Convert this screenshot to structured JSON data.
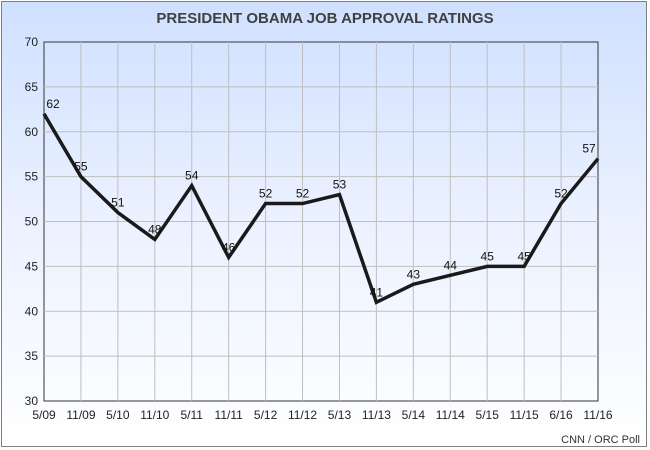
{
  "chart_data": {
    "type": "line",
    "title": "PRESIDENT OBAMA JOB APPROVAL RATINGS",
    "source": "CNN / ORC Poll",
    "categories": [
      "5/09",
      "11/09",
      "5/10",
      "11/10",
      "5/11",
      "11/11",
      "5/12",
      "11/12",
      "5/13",
      "11/13",
      "5/14",
      "11/14",
      "5/15",
      "11/15",
      "6/16",
      "11/16"
    ],
    "series": [
      {
        "values": [
          62,
          55,
          51,
          48,
          54,
          46,
          52,
          52,
          53,
          41,
          43,
          44,
          45,
          45,
          52,
          57
        ]
      }
    ],
    "ylim": [
      30,
      70
    ],
    "yticks": [
      30,
      35,
      40,
      45,
      50,
      55,
      60,
      65,
      70
    ],
    "grid": true,
    "line_color": "#1a1a1a",
    "grid_color": "#bfbfbf"
  }
}
